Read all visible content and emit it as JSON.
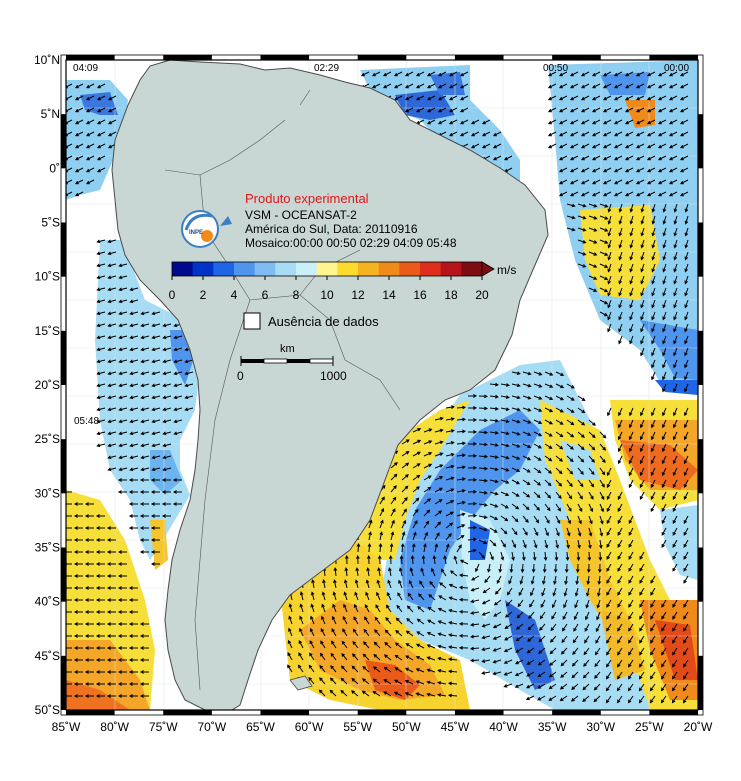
{
  "map": {
    "lon_labels": [
      "85˚W",
      "80˚W",
      "75˚W",
      "70˚W",
      "65˚W",
      "60˚W",
      "55˚W",
      "50˚W",
      "45˚W",
      "40˚W",
      "35˚W",
      "30˚W",
      "25˚W",
      "20˚W"
    ],
    "lat_labels": [
      "10˚N",
      "5˚N",
      "0˚",
      "5˚S",
      "10˚S",
      "15˚S",
      "20˚S",
      "25˚S",
      "30˚S",
      "35˚S",
      "40˚S",
      "45˚S",
      "50˚S"
    ],
    "lon_range": [
      -85,
      -20
    ],
    "lat_range": [
      -50,
      10
    ],
    "pass_times": [
      {
        "text": "04:09"
      },
      {
        "text": "02:29"
      },
      {
        "text": "00:50"
      },
      {
        "text": "00:00"
      },
      {
        "text": "05:48"
      }
    ],
    "colors": {
      "ocean_bg": "#ffffff",
      "land": "#c8d6d4",
      "coast": "#4a4a4a",
      "grid": "#e6ebea",
      "arrow": "#000000"
    }
  },
  "info": {
    "experimental": "Produto experimental",
    "sensor": "VSM - OCEANSAT-2",
    "region_date": "América do Sul, Data: 20110916",
    "mosaic": "Mosaico:00:00 00:50 02:29 04:09 05:48",
    "logo_text": "INPE"
  },
  "colorbar": {
    "unit": "m/s",
    "ticks": [
      "0",
      "2",
      "4",
      "6",
      "8",
      "10",
      "12",
      "14",
      "16",
      "18",
      "20"
    ],
    "colors": [
      "#000a8f",
      "#0033c8",
      "#1f66e6",
      "#4f95ee",
      "#7fbcf2",
      "#a8dcf5",
      "#c9f0f8",
      "#fff48f",
      "#fbdc2e",
      "#f6b321",
      "#f08a1a",
      "#ea5a19",
      "#de2d1a",
      "#b5141b",
      "#7d0d13"
    ]
  },
  "legend": {
    "no_data": "Ausência de dados"
  },
  "scalebar": {
    "unit": "km",
    "start": "0",
    "end": "1000"
  }
}
